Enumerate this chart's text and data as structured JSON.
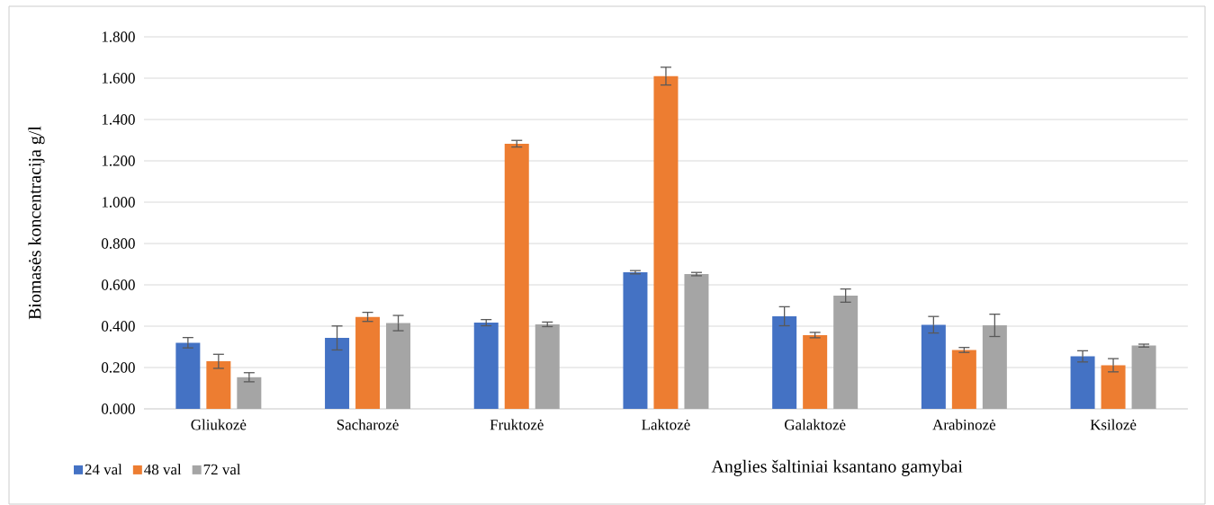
{
  "chart_data": {
    "type": "bar",
    "xlabel": "Anglies šaltiniai ksantano gamybai",
    "ylabel": "Biomasės koncentracija g/l",
    "categories": [
      "Gliukozė",
      "Sacharozė",
      "Fruktozė",
      "Laktozė",
      "Galaktozė",
      "Arabinozė",
      "Ksilozė"
    ],
    "series": [
      {
        "name": "24 val",
        "color": "#4472c4",
        "values": [
          0.32,
          0.343,
          0.417,
          0.661,
          0.448,
          0.407,
          0.254
        ],
        "errors": [
          0.025,
          0.058,
          0.015,
          0.008,
          0.046,
          0.04,
          0.027
        ]
      },
      {
        "name": "48 val",
        "color": "#ed7d31",
        "values": [
          0.23,
          0.445,
          1.283,
          1.61,
          0.357,
          0.285,
          0.211
        ],
        "errors": [
          0.034,
          0.022,
          0.016,
          0.043,
          0.013,
          0.012,
          0.032
        ]
      },
      {
        "name": "72 val",
        "color": "#a5a5a5",
        "values": [
          0.153,
          0.415,
          0.409,
          0.652,
          0.548,
          0.404,
          0.306
        ],
        "errors": [
          0.022,
          0.037,
          0.011,
          0.008,
          0.032,
          0.054,
          0.007
        ]
      }
    ],
    "ylim": [
      0,
      1.8
    ],
    "yticks": [
      {
        "value": 0,
        "label": "0.000"
      },
      {
        "value": 0.2,
        "label": "0.200"
      },
      {
        "value": 0.4,
        "label": "0.400"
      },
      {
        "value": 0.6,
        "label": "0.600"
      },
      {
        "value": 0.8,
        "label": "0.800"
      },
      {
        "value": 1.0,
        "label": "1.000"
      },
      {
        "value": 1.2,
        "label": "1.200"
      },
      {
        "value": 1.4,
        "label": "1.400"
      },
      {
        "value": 1.6,
        "label": "1.600"
      },
      {
        "value": 1.8,
        "label": "1.800"
      }
    ],
    "grid": "y",
    "legend": "bottom left"
  }
}
